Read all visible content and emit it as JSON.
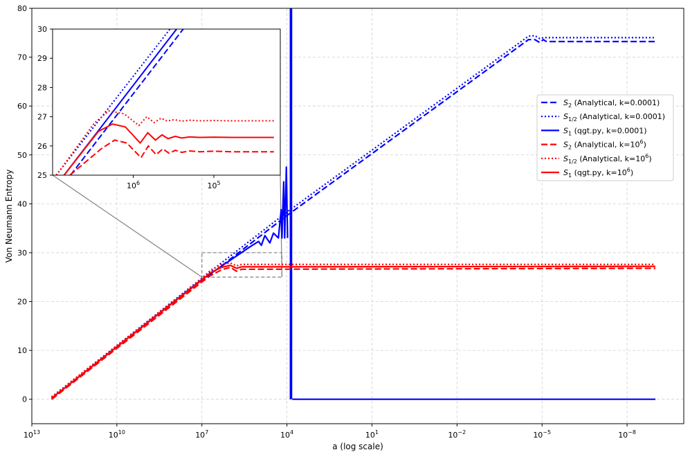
{
  "chart_data": {
    "type": "line",
    "xlabel": "a (log scale)",
    "ylabel": "Von Neumann Entropy",
    "x_scale": "log",
    "x_direction": "decreasing",
    "xlim": [
      10000000000000.0,
      1e-10
    ],
    "ylim": [
      -5,
      80
    ],
    "grid": true,
    "legend_placement": "right",
    "x_ticks": [
      {
        "value": 10000000000000.0,
        "base": "10",
        "exp": "13"
      },
      {
        "value": 10000000000.0,
        "base": "10",
        "exp": "10"
      },
      {
        "value": 10000000.0,
        "base": "10",
        "exp": "7"
      },
      {
        "value": 10000.0,
        "base": "10",
        "exp": "4"
      },
      {
        "value": 10,
        "base": "10",
        "exp": "1"
      },
      {
        "value": 0.01,
        "base": "10",
        "exp": "−2"
      },
      {
        "value": 1e-05,
        "base": "10",
        "exp": "−5"
      },
      {
        "value": 1e-08,
        "base": "10",
        "exp": "−8"
      }
    ],
    "y_ticks": [
      "0",
      "10",
      "20",
      "30",
      "40",
      "50",
      "60",
      "70",
      "80"
    ],
    "series": [
      {
        "name": "S₂ (Analytical, k=0.0001)",
        "legend_main": "S",
        "legend_sub": "2",
        "legend_rest": " (Analytical, k=0.0001)",
        "color": "#0000ff",
        "style": "dashed",
        "points": [
          [
            2000000000000.0,
            0
          ],
          [
            10000000.0,
            24.2
          ],
          [
            10000.0,
            37.6
          ],
          [
            3e-05,
            73.6
          ],
          [
            1.8e-05,
            73.6
          ],
          [
            1.2e-05,
            73.0
          ],
          [
            9e-06,
            73.6
          ],
          [
            7e-06,
            73.2
          ],
          [
            1e-09,
            73.2
          ]
        ]
      },
      {
        "name": "S₁/₂ (Analytical, k=0.0001)",
        "legend_main": "S",
        "legend_sub": "1/2",
        "legend_rest": " (Analytical, k=0.0001)",
        "color": "#0000ff",
        "style": "dotted",
        "points": [
          [
            2000000000000.0,
            0.4
          ],
          [
            10000000.0,
            24.8
          ],
          [
            10000.0,
            38.3
          ],
          [
            3e-05,
            74.3
          ],
          [
            1.8e-05,
            74.4
          ],
          [
            1.2e-05,
            73.8
          ],
          [
            9e-06,
            74.0
          ],
          [
            1e-09,
            74.0
          ]
        ]
      },
      {
        "name": "S₁ (qgt.py, k=0.0001)",
        "legend_main": "S",
        "legend_sub": "1",
        "legend_rest": " (qgt.py, k=0.0001)",
        "color": "#0000ff",
        "style": "solid",
        "points": [
          [
            2000000000000.0,
            0.2
          ],
          [
            10000000.0,
            24.5
          ],
          [
            200000.0,
            31.2
          ],
          [
            100000.0,
            32.3
          ],
          [
            80000.0,
            31.5
          ],
          [
            60000.0,
            33.5
          ],
          [
            40000.0,
            32.0
          ],
          [
            30000.0,
            34.0
          ],
          [
            20000.0,
            33.0
          ],
          [
            16000.0,
            38.8
          ],
          [
            15000.0,
            33.0
          ],
          [
            13000.0,
            44.5
          ],
          [
            12000.0,
            33.0
          ],
          [
            10500.0,
            47.5
          ],
          [
            9500.0,
            33.0
          ]
        ],
        "spike_band": {
          "x_from": 8000.0,
          "x_to": 6500.0,
          "y_min": 0,
          "y_max": 80
        },
        "tail": [
          [
            6500.0,
            0
          ],
          [
            1e-09,
            0
          ]
        ]
      },
      {
        "name": "S₂ (Analytical, k=10⁶)",
        "legend_main": "S",
        "legend_sub": "2",
        "legend_rest": " (Analytical, k=10",
        "legend_sup": "6",
        "legend_tail": ")",
        "color": "#ff0000",
        "style": "dashed",
        "points": [
          [
            2000000000000.0,
            0
          ],
          [
            10000000.0,
            24.0
          ],
          [
            5000000.0,
            25.3
          ],
          [
            2000000.0,
            26.5
          ],
          [
            1000000.0,
            27.0
          ],
          [
            600000.0,
            26.2
          ],
          [
            400000.0,
            26.6
          ],
          [
            250000.0,
            26.6
          ],
          [
            1e-09,
            26.8
          ]
        ]
      },
      {
        "name": "S₁/₂ (Analytical, k=10⁶)",
        "legend_main": "S",
        "legend_sub": "1/2",
        "legend_rest": " (Analytical, k=10",
        "legend_sup": "6",
        "legend_tail": ")",
        "color": "#ff0000",
        "style": "dotted",
        "points": [
          [
            2000000000000.0,
            0.5
          ],
          [
            10000000.0,
            24.7
          ],
          [
            5000000.0,
            26.4
          ],
          [
            2000000.0,
            27.6
          ],
          [
            1000000.0,
            27.9
          ],
          [
            600000.0,
            27.3
          ],
          [
            400000.0,
            27.6
          ],
          [
            250000.0,
            27.6
          ],
          [
            1e-09,
            27.6
          ]
        ]
      },
      {
        "name": "S₁ (qgt.py, k=10⁶)",
        "legend_main": "S",
        "legend_sub": "1",
        "legend_rest": " (qgt.py, k=10",
        "legend_sup": "6",
        "legend_tail": ")",
        "color": "#ff0000",
        "style": "solid",
        "points": [
          [
            2000000000000.0,
            0.2
          ],
          [
            10000000.0,
            24.4
          ],
          [
            5000000.0,
            25.9
          ],
          [
            2000000.0,
            27.0
          ],
          [
            1000000.0,
            27.4
          ],
          [
            600000.0,
            26.8
          ],
          [
            400000.0,
            27.1
          ],
          [
            250000.0,
            27.1
          ],
          [
            1e-09,
            27.2
          ]
        ]
      }
    ],
    "inset": {
      "xlim": [
        10000000.0,
        15000.0
      ],
      "ylim": [
        25,
        30
      ],
      "x_ticks": [
        {
          "value": 1000000.0,
          "base": "10",
          "exp": "6"
        },
        {
          "value": 100000.0,
          "base": "10",
          "exp": "5"
        }
      ],
      "y_ticks": [
        "25",
        "26",
        "27",
        "28",
        "29",
        "30"
      ],
      "series": [
        {
          "color": "#0000ff",
          "style": "dashed",
          "points": [
            [
              6000000.0,
              25
            ],
            [
              240000.0,
              30
            ]
          ]
        },
        {
          "color": "#0000ff",
          "style": "dotted",
          "points": [
            [
              9000000.0,
              25
            ],
            [
              350000.0,
              30
            ]
          ]
        },
        {
          "color": "#0000ff",
          "style": "solid",
          "points": [
            [
              7200000.0,
              25
            ],
            [
              290000.0,
              30
            ]
          ]
        },
        {
          "color": "#ff0000",
          "style": "dashed",
          "points": [
            [
              6100000.0,
              25
            ],
            [
              2500000.0,
              25.9
            ],
            [
              1700000.0,
              26.2
            ],
            [
              1200000.0,
              26.1
            ],
            [
              800000.0,
              25.6
            ],
            [
              650000.0,
              26.0
            ],
            [
              520000.0,
              25.7
            ],
            [
              430000.0,
              25.9
            ],
            [
              360000.0,
              25.75
            ],
            [
              300000.0,
              25.85
            ],
            [
              250000.0,
              25.78
            ],
            [
              200000.0,
              25.83
            ],
            [
              150000.0,
              25.8
            ],
            [
              100000.0,
              25.82
            ],
            [
              60000.0,
              25.8
            ],
            [
              18000.0,
              25.8
            ]
          ]
        },
        {
          "color": "#ff0000",
          "style": "dotted",
          "points": [
            [
              9000000.0,
              25
            ],
            [
              3000000.0,
              26.8
            ],
            [
              2000000.0,
              27.2
            ],
            [
              1300000.0,
              27.1
            ],
            [
              850000.0,
              26.7
            ],
            [
              680000.0,
              27.0
            ],
            [
              550000.0,
              26.8
            ],
            [
              450000.0,
              26.95
            ],
            [
              380000.0,
              26.85
            ],
            [
              310000.0,
              26.9
            ],
            [
              250000.0,
              26.85
            ],
            [
              200000.0,
              26.88
            ],
            [
              150000.0,
              26.86
            ],
            [
              100000.0,
              26.87
            ],
            [
              60000.0,
              26.86
            ],
            [
              18000.0,
              26.86
            ]
          ]
        },
        {
          "color": "#ff0000",
          "style": "solid",
          "points": [
            [
              7200000.0,
              25
            ],
            [
              2700000.0,
              26.5
            ],
            [
              1800000.0,
              26.75
            ],
            [
              1250000.0,
              26.65
            ],
            [
              820000.0,
              26.1
            ],
            [
              660000.0,
              26.45
            ],
            [
              530000.0,
              26.2
            ],
            [
              440000.0,
              26.38
            ],
            [
              370000.0,
              26.25
            ],
            [
              300000.0,
              26.33
            ],
            [
              250000.0,
              26.27
            ],
            [
              200000.0,
              26.31
            ],
            [
              150000.0,
              26.29
            ],
            [
              100000.0,
              26.3
            ],
            [
              60000.0,
              26.29
            ],
            [
              18000.0,
              26.29
            ]
          ]
        }
      ]
    },
    "zoom_box": {
      "x_from": 10000000.0,
      "x_to": 15000.0,
      "y_from": 25,
      "y_to": 30
    }
  }
}
